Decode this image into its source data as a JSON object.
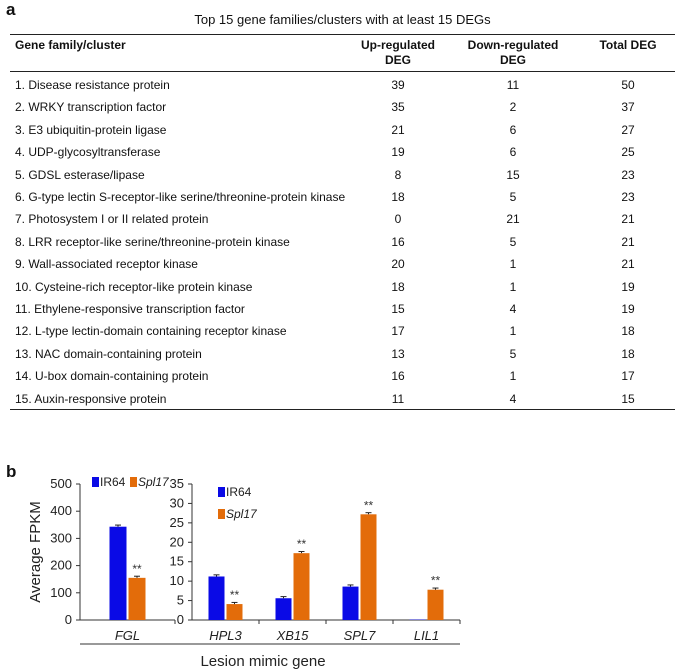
{
  "panel_a": {
    "label": "a",
    "title": "Top 15 gene families/clusters with at least 15 DEGs",
    "headers": [
      "Gene family/cluster",
      "Up-regulated DEG",
      "Down-regulated DEG",
      "Total DEG"
    ],
    "header_lines": [
      [
        "Gene family/cluster"
      ],
      [
        "Up-regulated",
        "DEG"
      ],
      [
        "Down-regulated",
        "DEG"
      ],
      [
        "Total DEG"
      ]
    ],
    "rows": [
      [
        "1. Disease resistance protein",
        "39",
        "11",
        "50"
      ],
      [
        "2. WRKY transcription factor",
        "35",
        "2",
        "37"
      ],
      [
        "3. E3 ubiquitin-protein ligase",
        "21",
        "6",
        "27"
      ],
      [
        "4. UDP-glycosyltransferase",
        "19",
        "6",
        "25"
      ],
      [
        "5. GDSL esterase/lipase",
        "8",
        "15",
        "23"
      ],
      [
        "6. G-type lectin S-receptor-like serine/threonine-protein kinase",
        "18",
        "5",
        "23"
      ],
      [
        "7. Photosystem I or II related protein",
        "0",
        "21",
        "21"
      ],
      [
        "8. LRR receptor-like serine/threonine-protein kinase",
        "16",
        "5",
        "21"
      ],
      [
        "9. Wall-associated receptor kinase",
        "20",
        "1",
        "21"
      ],
      [
        "10. Cysteine-rich receptor-like protein kinase",
        "18",
        "1",
        "19"
      ],
      [
        "11. Ethylene-responsive transcription factor",
        "15",
        "4",
        "19"
      ],
      [
        "12. L-type lectin-domain containing receptor kinase",
        "17",
        "1",
        "18"
      ],
      [
        "13. NAC domain-containing protein",
        "13",
        "5",
        "18"
      ],
      [
        "14. U-box domain-containing protein",
        "16",
        "1",
        "17"
      ],
      [
        "15. Auxin-responsive protein",
        "11",
        "4",
        "15"
      ]
    ]
  },
  "panel_b": {
    "label": "b"
  },
  "chart_data": [
    {
      "type": "bar",
      "categories": [
        "FGL"
      ],
      "series": [
        {
          "name": "IR64",
          "color": "#0a0ae6",
          "values": [
            343
          ]
        },
        {
          "name": "Spl17",
          "color": "#e36c0a",
          "values": [
            155
          ],
          "annotations": [
            "**"
          ]
        }
      ],
      "ylabel": "Average FPKM",
      "ylim": [
        0,
        500
      ],
      "yticks": [
        0,
        100,
        200,
        300,
        400,
        500
      ],
      "legend": "top"
    },
    {
      "type": "bar",
      "categories": [
        "HPL3",
        "XB15",
        "SPL7",
        "LIL1"
      ],
      "series": [
        {
          "name": "IR64",
          "color": "#0a0ae6",
          "values": [
            11.2,
            5.6,
            8.6,
            0.1
          ]
        },
        {
          "name": "Spl17",
          "color": "#e36c0a",
          "values": [
            4.1,
            17.2,
            27.2,
            7.8
          ],
          "annotations": [
            "**",
            "**",
            "**",
            "**"
          ]
        }
      ],
      "ylim": [
        0,
        35
      ],
      "yticks": [
        0,
        5,
        10,
        15,
        20,
        25,
        30,
        35
      ],
      "legend": "top-left"
    }
  ],
  "shared_xlabel": "Lesion mimic gene"
}
